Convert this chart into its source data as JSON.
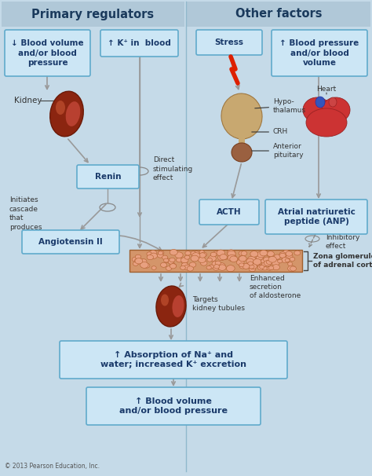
{
  "bg_color": "#c5dae8",
  "title_left": "Primary regulators",
  "title_right": "Other factors",
  "title_bg": "#b0c8d8",
  "box_fill": "#cce6f5",
  "box_edge": "#60aacc",
  "box_text_color": "#1a3a6a",
  "arrow_color": "#999999",
  "text_color": "#333333",
  "copyright": "© 2013 Pearson Education, Inc.",
  "zona_color": "#d4956a",
  "zona_edge": "#a06030"
}
